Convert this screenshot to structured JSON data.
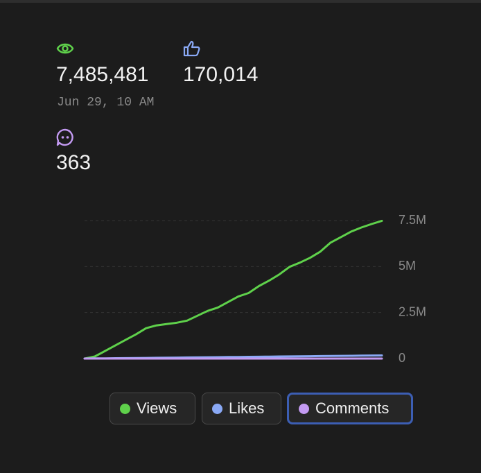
{
  "stats": {
    "views": "7,485,481",
    "likes": "170,014",
    "date": "Jun 29, 10 AM",
    "comments": "363"
  },
  "chart_data": {
    "type": "line",
    "series": [
      {
        "name": "Views",
        "color": "#5fd14b",
        "values": [
          0,
          112500,
          412500,
          712500,
          1012500,
          1312500,
          1650000,
          1800000,
          1875000,
          1950000,
          2062500,
          2325000,
          2587500,
          2775000,
          3075000,
          3375000,
          3562500,
          3937500,
          4237500,
          4575000,
          4987500,
          5212500,
          5475000,
          5812500,
          6300000,
          6600000,
          6900000,
          7125000,
          7312500,
          7485481
        ]
      },
      {
        "name": "Likes",
        "color": "#8aa9f5",
        "values": [
          0,
          5900,
          11700,
          17600,
          23500,
          29300,
          35200,
          41000,
          46900,
          52800,
          58600,
          64500,
          70300,
          76200,
          82100,
          87900,
          93800,
          99700,
          105500,
          111400,
          117200,
          123100,
          129000,
          134800,
          140700,
          146600,
          152400,
          158300,
          164100,
          170014
        ]
      },
      {
        "name": "Comments",
        "color": "#c39af2",
        "values": [
          0,
          13,
          25,
          38,
          50,
          63,
          75,
          88,
          100,
          113,
          125,
          138,
          150,
          163,
          175,
          188,
          200,
          213,
          225,
          238,
          250,
          263,
          275,
          288,
          300,
          313,
          325,
          338,
          350,
          363
        ]
      }
    ],
    "ylim": [
      0,
      7500000
    ],
    "yticks": [
      0,
      {
        "value": 2500000,
        "label": "2.5M"
      },
      {
        "value": 5000000,
        "label": "5M"
      },
      {
        "value": 7500000,
        "label": "7.5M"
      }
    ],
    "grid": true
  }
}
